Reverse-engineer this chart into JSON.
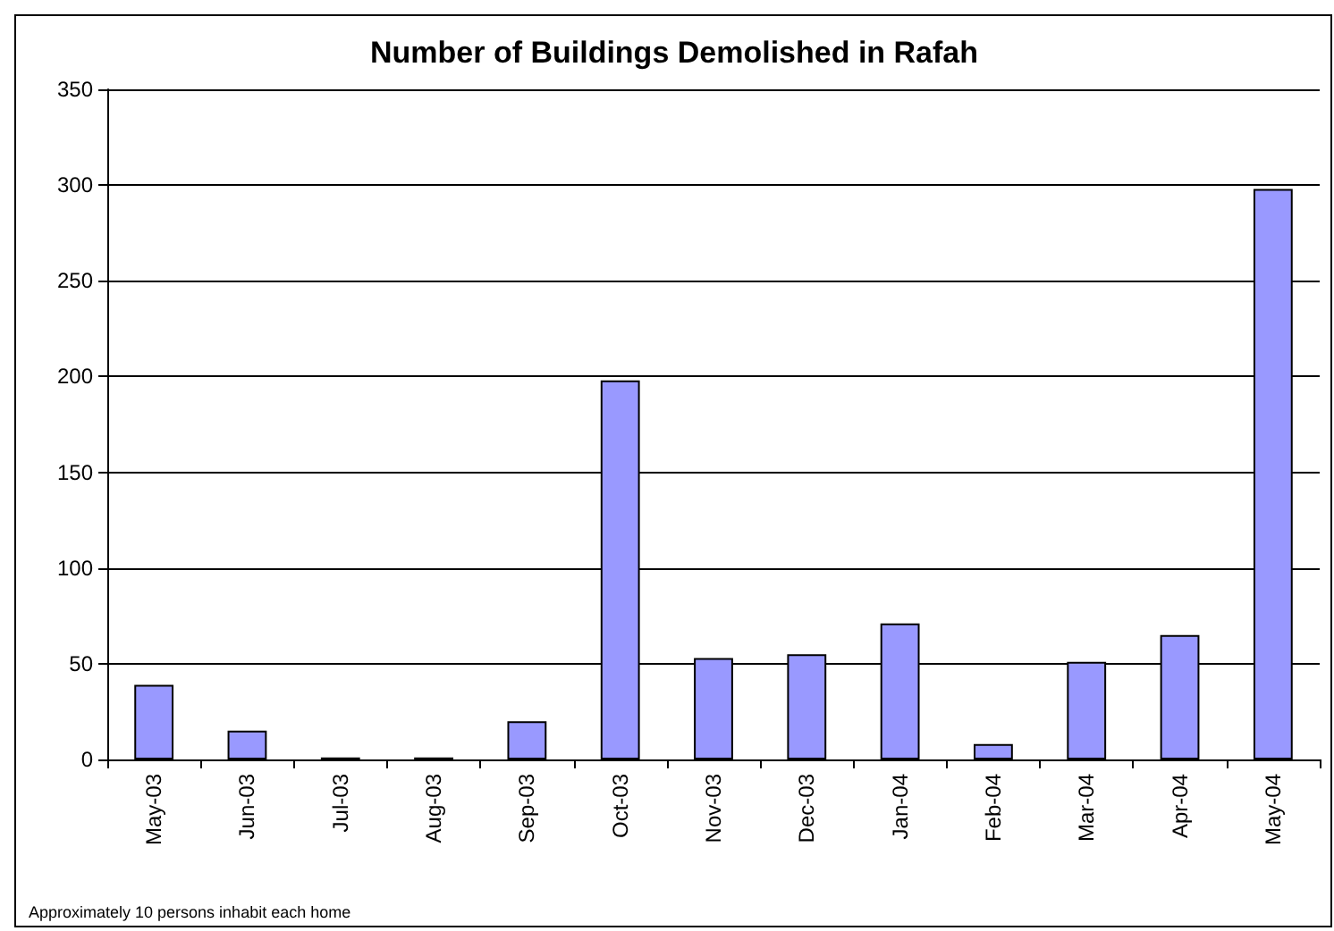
{
  "chart_data": {
    "type": "bar",
    "title": "Number of Buildings Demolished in Rafah",
    "categories": [
      "May-03",
      "Jun-03",
      "Jul-03",
      "Aug-03",
      "Sep-03",
      "Oct-03",
      "Nov-03",
      "Dec-03",
      "Jan-04",
      "Feb-04",
      "Mar-04",
      "Apr-04",
      "May-04"
    ],
    "values": [
      39,
      15,
      1,
      1,
      20,
      198,
      53,
      55,
      71,
      8,
      51,
      65,
      298
    ],
    "color": "#9999ff",
    "ylim": [
      0,
      350
    ],
    "yticks": [
      0,
      50,
      100,
      150,
      200,
      250,
      300,
      350
    ],
    "grid": "y",
    "annotations": [
      "Approximately 10 persons inhabit each home"
    ]
  }
}
